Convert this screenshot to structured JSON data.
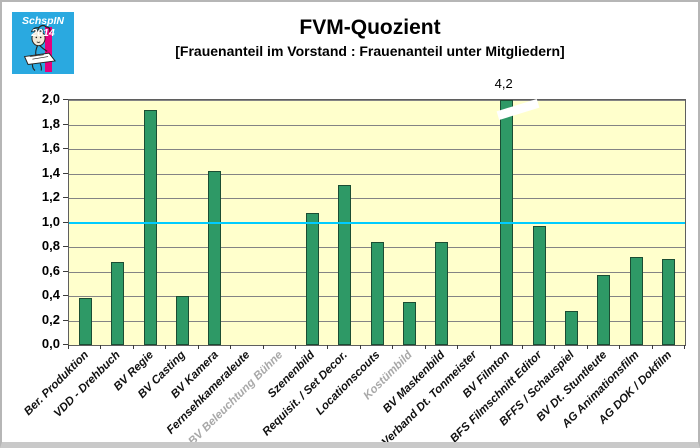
{
  "logo": {
    "text": "SchspIN 2014",
    "bg_color": "#2AA9E0",
    "stripe_color": "#E5007D",
    "text_color": "#FFFFFF"
  },
  "chart_data": {
    "type": "bar",
    "title": "FVM-Quozient",
    "subtitle": "[Frauenanteil im Vorstand : Frauenanteil unter Mitgliedern]",
    "categories": [
      "Ber. Produktion",
      "VDD - Drehbuch",
      "BV Regie",
      "BV Casting",
      "BV Kamera",
      "Fernsehkameraleute",
      "BV Beleuchtung Bühne",
      "Szenenbild",
      "Requisit. / Set Decor.",
      "Locationscouts",
      "Kostümbild",
      "BV Maskenbild",
      "Verband Dt. Tonmeister",
      "BV Filmton",
      "BFS Filmschnitt Editor",
      "BFFS / Schauspiel",
      "BV Dt. Stuntleute",
      "AG Animationsfilm",
      "AG DOK / Dokfilm"
    ],
    "values": [
      0.38,
      0.68,
      1.92,
      0.4,
      1.42,
      null,
      null,
      1.08,
      1.31,
      0.84,
      0.35,
      0.84,
      null,
      4.2,
      0.97,
      0.28,
      0.57,
      0.72,
      0.7
    ],
    "muted_categories": [
      "BV Beleuchtung Bühne",
      "Kostümbild"
    ],
    "clipped_bar": {
      "category": "BV Filmton",
      "true_value": 4.2,
      "display_label": "4,2",
      "clipped_at": 2.0
    },
    "reference_line": {
      "value": 1.0,
      "color": "#00CCFF"
    },
    "ylim": [
      0,
      2.0
    ],
    "ytick_step": 0.2,
    "ytick_labels": [
      "0,0",
      "0,2",
      "0,4",
      "0,6",
      "0,8",
      "1,0",
      "1,2",
      "1,4",
      "1,6",
      "1,8",
      "2,0"
    ],
    "grid": true,
    "legend": false,
    "colors": {
      "bar": "#2E9966",
      "bar_border": "#1B4D33",
      "plot_background": "#FFFFCC",
      "gridline": "#848484",
      "reference_line": "#00CCFF",
      "muted_label": "#A8A8A8",
      "label": "#000000"
    }
  }
}
